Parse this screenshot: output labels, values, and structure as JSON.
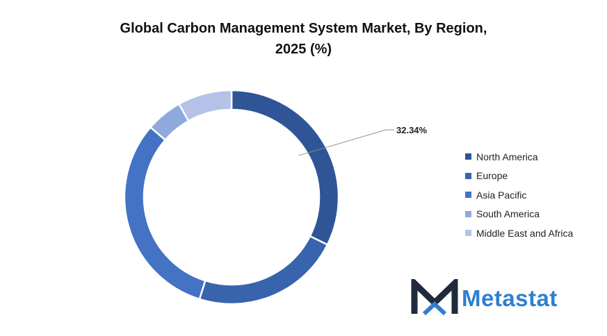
{
  "title": {
    "line1": "Global Carbon Management System Market, By Region,",
    "line2": "2025 (%)"
  },
  "chart_data": {
    "type": "donut",
    "title": "Global Carbon Management System Market, By Region, 2025 (%)",
    "categories": [
      "North America",
      "Europe",
      "Asia Pacific",
      "South America",
      "Middle East and Africa"
    ],
    "values": [
      32.34,
      22.5,
      31.5,
      5.5,
      8.16
    ],
    "colors": [
      "#2f5597",
      "#3863ad",
      "#4472c4",
      "#8ea9db",
      "#b4c2e7"
    ],
    "labels": [
      {
        "category": "North America",
        "text": "32.34%"
      }
    ],
    "legend_position": "right"
  },
  "logo": {
    "brand": "Metastat",
    "color": "#2f7fd0",
    "mark_color": "#1f2a3a"
  }
}
